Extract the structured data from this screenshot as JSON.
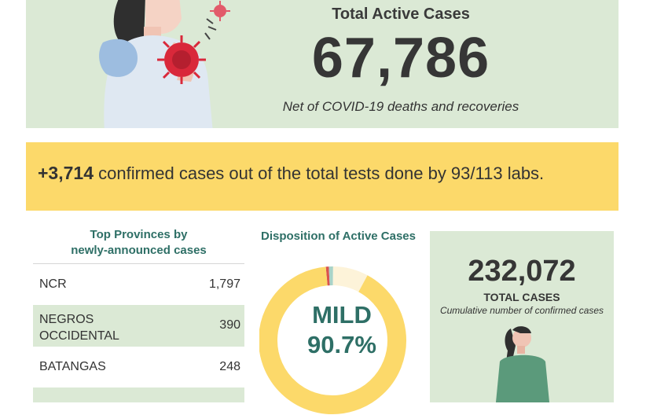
{
  "active": {
    "title": "Total Active Cases",
    "number": "67,786",
    "note": "Net of COVID-19 deaths and recoveries"
  },
  "banner": {
    "number": "+3,714",
    "text": "confirmed cases out of the total tests done by 93/113 labs."
  },
  "provinces": {
    "title_line1": "Top Provinces by",
    "title_line2": "newly-announced cases",
    "rows": [
      {
        "name_line1": "NCR",
        "name_line2": "",
        "value": "1,797"
      },
      {
        "name_line1": "NEGROS",
        "name_line2": "OCCIDENTAL",
        "value": "390"
      },
      {
        "name_line1": "BATANGAS",
        "name_line2": "",
        "value": "248"
      }
    ]
  },
  "disposition": {
    "title": "Disposition of Active Cases",
    "label_main": "MILD",
    "label_pct": "90.7%",
    "mild_fraction": 0.907,
    "colors": {
      "mild": "#fcd96a",
      "other1": "#fdf3d9",
      "other2": "#a9d3c8",
      "other3": "#d9534f"
    }
  },
  "total": {
    "number": "232,072",
    "label": "TOTAL CASES",
    "sub": "Cumulative number of confirmed cases"
  },
  "colors": {
    "green_panel": "#dbe9d5",
    "yellow": "#fcd96a",
    "teal_text": "#2e6f66"
  }
}
